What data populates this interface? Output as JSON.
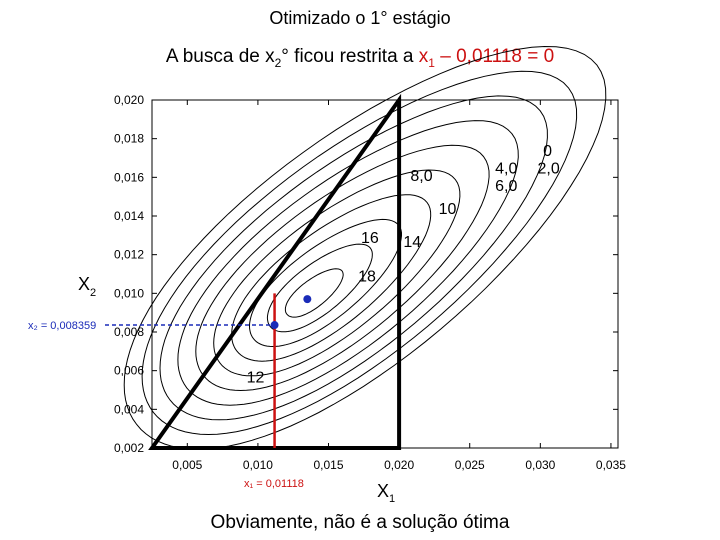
{
  "slide": {
    "title": "Otimizado o 1° estágio",
    "subtitle_part1": "A busca de x",
    "subtitle_sub2": "2",
    "subtitle_part2": "° ficou restrita a ",
    "subtitle_red_part1": "x",
    "subtitle_red_sub1": "1",
    "subtitle_red_part2": " – 0,01118 = 0",
    "footer": "Obviamente, não é a solução ótima"
  },
  "colors": {
    "red": "#cc1111",
    "blue": "#1a2bb8",
    "black": "#000000"
  },
  "chart_data": {
    "type": "contour",
    "xlabel_main": "X",
    "xlabel_sub": "1",
    "ylabel_main": "X",
    "ylabel_sub": "2",
    "xlim": [
      0.0025,
      0.0355
    ],
    "ylim": [
      0.002,
      0.02
    ],
    "xticks": [
      0.005,
      0.01,
      0.015,
      0.02,
      0.025,
      0.03,
      0.035
    ],
    "xtick_labels": [
      "0,005",
      "0,010",
      "0,015",
      "0,020",
      "0,025",
      "0,030",
      "0,035"
    ],
    "yticks": [
      0.002,
      0.004,
      0.006,
      0.008,
      0.01,
      0.012,
      0.014,
      0.016,
      0.018,
      0.02
    ],
    "ytick_labels": [
      "0,002",
      "0,004",
      "0,006",
      "0,008",
      "0,010",
      "0,012",
      "0,014",
      "0,016",
      "0,018",
      "0,020"
    ],
    "contour_levels": [
      0,
      2,
      4,
      6,
      8,
      10,
      12,
      14,
      16,
      18
    ],
    "contour_labels": [
      {
        "text": "0",
        "x": 0.0302,
        "y": 0.0171
      },
      {
        "text": "2,0",
        "x": 0.0298,
        "y": 0.0162
      },
      {
        "text": "4,0",
        "x": 0.0268,
        "y": 0.0162
      },
      {
        "text": "6,0",
        "x": 0.0268,
        "y": 0.0153
      },
      {
        "text": "8,0",
        "x": 0.0208,
        "y": 0.0158
      },
      {
        "text": "10",
        "x": 0.0228,
        "y": 0.0141
      },
      {
        "text": "14",
        "x": 0.0203,
        "y": 0.0124
      },
      {
        "text": "16",
        "x": 0.0173,
        "y": 0.0126
      },
      {
        "text": "18",
        "x": 0.0171,
        "y": 0.0106
      },
      {
        "text": "12",
        "x": 0.0092,
        "y": 0.0054
      }
    ],
    "optimum_point": {
      "x": 0.0135,
      "y": 0.0097
    },
    "found_point": {
      "x": 0.01118,
      "y": 0.008359
    },
    "constraint_line": {
      "x": 0.01118,
      "label": "x₁ = 0,01118"
    },
    "x2_annotation": {
      "y": 0.008359,
      "label": "x₂ = 0,008359"
    },
    "triangle_region": [
      [
        0.0025,
        0.002
      ],
      [
        0.02,
        0.02
      ],
      [
        0.02,
        0.002
      ]
    ]
  }
}
